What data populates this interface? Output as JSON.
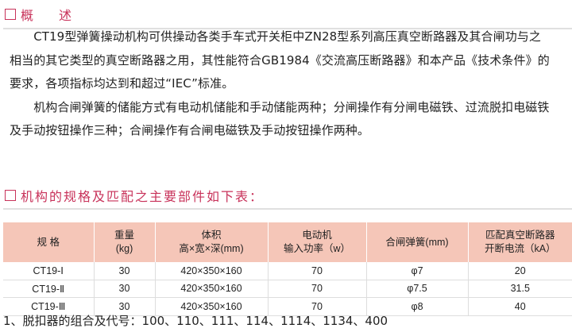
{
  "section1": {
    "title": "概　　述",
    "paragraphs": [
      "　　CT19型弹簧操动机构可供操动各类手车式开关柜中ZN28型系列高压真空断路器及其合闸功与之",
      "相当的其它类型的真空断路器之用，其性能符合GB1984《交流高压断路器》和本产品《技术条件》的",
      "要求，各项指标均达到和超过“IEC”标准。",
      "　　机构合闸弹簧的储能方式有电动机储能和手动储能两种；分闸操作有分闸电磁铁、过流脱扣电磁铁",
      "及手动按钮操作三种；合闸操作有合闸电磁铁及手动按钮操作两种。"
    ]
  },
  "section2": {
    "title": "机构的规格及匹配之主要部件如下表："
  },
  "table": {
    "headers": [
      [
        "规 格",
        ""
      ],
      [
        "重量",
        "(kg)"
      ],
      [
        "体积",
        "高×宽×深(mm)"
      ],
      [
        "电动机",
        "输入功率（w）"
      ],
      [
        "合闸弹簧(mm)",
        ""
      ],
      [
        "匹配真空断路器",
        "开断电流（kA）"
      ]
    ],
    "rows": [
      [
        "CT19-Ⅰ",
        "30",
        "420×350×160",
        "70",
        "φ7",
        "20"
      ],
      [
        "CT19-Ⅱ",
        "30",
        "420×350×160",
        "70",
        "φ7.5",
        "31.5"
      ],
      [
        "CT19-Ⅲ",
        "30",
        "420×350×160",
        "70",
        "φ8",
        "40"
      ]
    ]
  },
  "note": "1、脱扣器的组合及代号：100、110、111、114、1114、1134、400",
  "colors": {
    "accent": "#c8325a",
    "header_bg": "#f5c6b8"
  }
}
